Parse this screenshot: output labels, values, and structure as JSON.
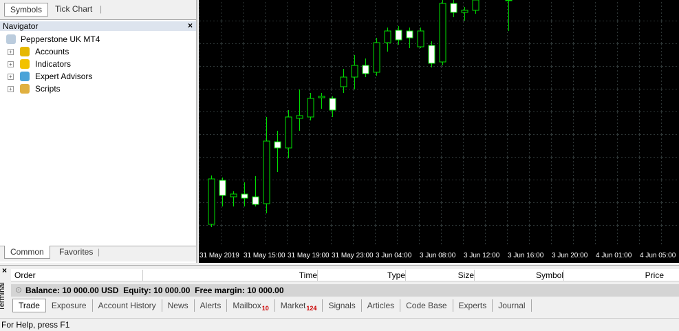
{
  "left_panel": {
    "top_tabs": [
      "Symbols",
      "Tick Chart"
    ],
    "navigator": {
      "title": "Navigator",
      "close": "×",
      "items": [
        "Pepperstone UK MT4",
        "Accounts",
        "Indicators",
        "Expert Advisors",
        "Scripts"
      ]
    },
    "bottom_tabs": [
      "Common",
      "Favorites"
    ]
  },
  "chart": {
    "x_labels": [
      "31 May 2019",
      "31 May 15:00",
      "31 May 19:00",
      "31 May 23:00",
      "3 Jun 04:00",
      "3 Jun 08:00",
      "3 Jun 12:00",
      "3 Jun 16:00",
      "3 Jun 20:00",
      "4 Jun 01:00",
      "4 Jun 05:00"
    ]
  },
  "terminal": {
    "close": "×",
    "side_label": "Terminal",
    "columns": [
      "Order",
      "Time",
      "Type",
      "Size",
      "Symbol",
      "Price"
    ],
    "balance_row": "Balance: 10 000.00 USD  Equity: 10 000.00  Free margin: 10 000.00",
    "tabs": [
      {
        "label": "Trade"
      },
      {
        "label": "Exposure"
      },
      {
        "label": "Account History"
      },
      {
        "label": "News"
      },
      {
        "label": "Alerts"
      },
      {
        "label": "Mailbox",
        "badge": 10
      },
      {
        "label": "Market",
        "badge": 124
      },
      {
        "label": "Signals"
      },
      {
        "label": "Articles"
      },
      {
        "label": "Code Base"
      },
      {
        "label": "Experts"
      },
      {
        "label": "Journal"
      }
    ]
  },
  "status_bar": "For Help, press F1"
}
